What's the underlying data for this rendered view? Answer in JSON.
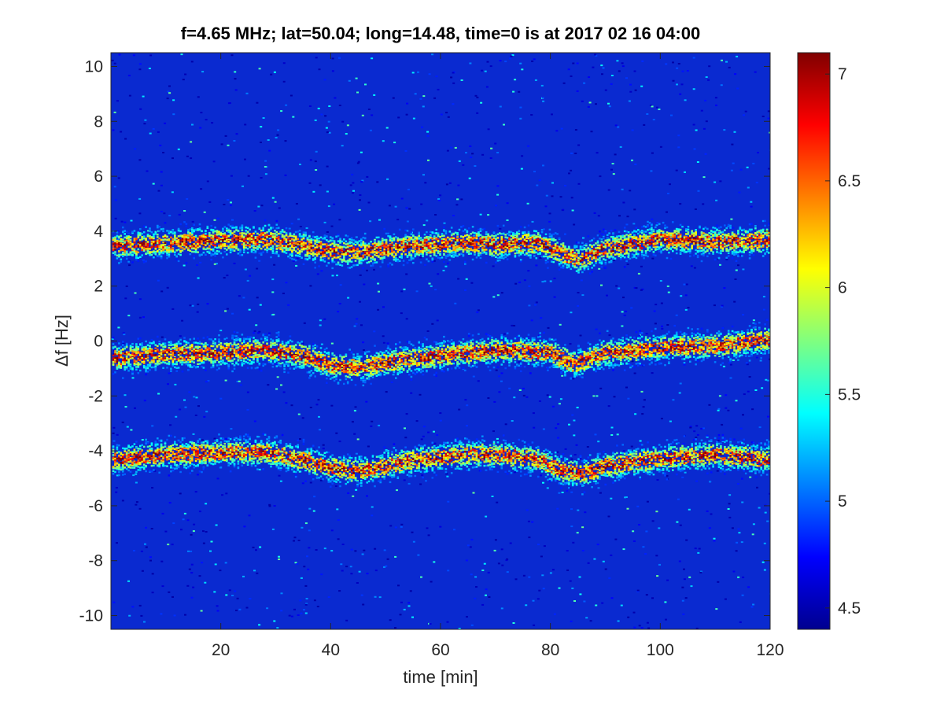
{
  "chart_data": {
    "type": "heatmap",
    "title": "f=4.65 MHz;  lat=50.04; long=14.48, time=0 is at 2017 02 16 04:00",
    "xlabel": "time [min]",
    "ylabel": "Δf [Hz]",
    "xlim": [
      0,
      120
    ],
    "ylim": [
      -10.5,
      10.5
    ],
    "x_ticks": [
      20,
      40,
      60,
      80,
      100,
      120
    ],
    "y_ticks": [
      10,
      8,
      6,
      4,
      2,
      0,
      -2,
      -4,
      -6,
      -8,
      -10
    ],
    "colormap": "jet",
    "colorbar": {
      "range": [
        4.4,
        7.1
      ],
      "ticks": [
        4.5,
        5,
        5.5,
        6,
        6.5,
        7
      ]
    },
    "background_value": 4.5,
    "bands": [
      {
        "name": "",
        "points": [
          [
            0,
            3.5
          ],
          [
            10,
            3.6
          ],
          [
            20,
            3.7
          ],
          [
            28,
            3.75
          ],
          [
            35,
            3.5
          ],
          [
            40,
            3.3
          ],
          [
            45,
            3.25
          ],
          [
            50,
            3.4
          ],
          [
            55,
            3.5
          ],
          [
            60,
            3.55
          ],
          [
            65,
            3.6
          ],
          [
            70,
            3.55
          ],
          [
            78,
            3.6
          ],
          [
            82,
            3.2
          ],
          [
            85,
            3.0
          ],
          [
            90,
            3.4
          ],
          [
            100,
            3.75
          ],
          [
            110,
            3.65
          ],
          [
            120,
            3.7
          ]
        ]
      },
      {
        "name": "",
        "points": [
          [
            0,
            -0.6
          ],
          [
            10,
            -0.45
          ],
          [
            20,
            -0.4
          ],
          [
            28,
            -0.3
          ],
          [
            35,
            -0.5
          ],
          [
            40,
            -0.85
          ],
          [
            45,
            -0.95
          ],
          [
            50,
            -0.75
          ],
          [
            60,
            -0.5
          ],
          [
            70,
            -0.3
          ],
          [
            75,
            -0.35
          ],
          [
            80,
            -0.4
          ],
          [
            84,
            -0.8
          ],
          [
            90,
            -0.4
          ],
          [
            100,
            -0.2
          ],
          [
            110,
            -0.15
          ],
          [
            120,
            0.1
          ]
        ]
      },
      {
        "name": "",
        "points": [
          [
            0,
            -4.3
          ],
          [
            10,
            -4.1
          ],
          [
            20,
            -4.05
          ],
          [
            28,
            -4.0
          ],
          [
            35,
            -4.3
          ],
          [
            40,
            -4.6
          ],
          [
            45,
            -4.7
          ],
          [
            50,
            -4.5
          ],
          [
            55,
            -4.3
          ],
          [
            60,
            -4.2
          ],
          [
            65,
            -4.1
          ],
          [
            70,
            -4.1
          ],
          [
            78,
            -4.3
          ],
          [
            82,
            -4.7
          ],
          [
            86,
            -4.8
          ],
          [
            90,
            -4.5
          ],
          [
            100,
            -4.25
          ],
          [
            110,
            -4.1
          ],
          [
            120,
            -4.3
          ]
        ]
      }
    ]
  }
}
